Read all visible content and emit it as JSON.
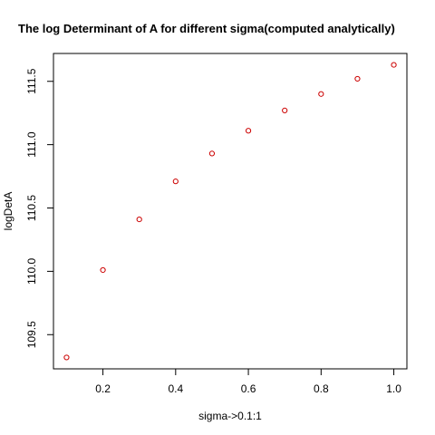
{
  "chart_data": {
    "type": "scatter",
    "title": "The log Determinant of A for different sigma(computed analytically)",
    "xlabel": "sigma->0.1:1",
    "ylabel": "logDetA",
    "x": [
      0.1,
      0.2,
      0.3,
      0.4,
      0.5,
      0.6,
      0.7,
      0.8,
      0.9,
      1.0
    ],
    "y": [
      109.32,
      110.01,
      110.41,
      110.71,
      110.93,
      111.11,
      111.27,
      111.4,
      111.52,
      111.63
    ],
    "xlim": [
      0.064,
      1.036
    ],
    "ylim": [
      109.23,
      111.72
    ],
    "xticks": [
      0.2,
      0.4,
      0.6,
      0.8,
      1.0
    ],
    "xtick_labels": [
      "0.2",
      "0.4",
      "0.6",
      "0.8",
      "1.0"
    ],
    "yticks": [
      109.5,
      110.0,
      110.5,
      111.0,
      111.5
    ],
    "ytick_labels": [
      "109.5",
      "110.0",
      "110.5",
      "111.0",
      "111.5"
    ],
    "point_color": "#cc0000",
    "grid": false,
    "legend": "none"
  }
}
